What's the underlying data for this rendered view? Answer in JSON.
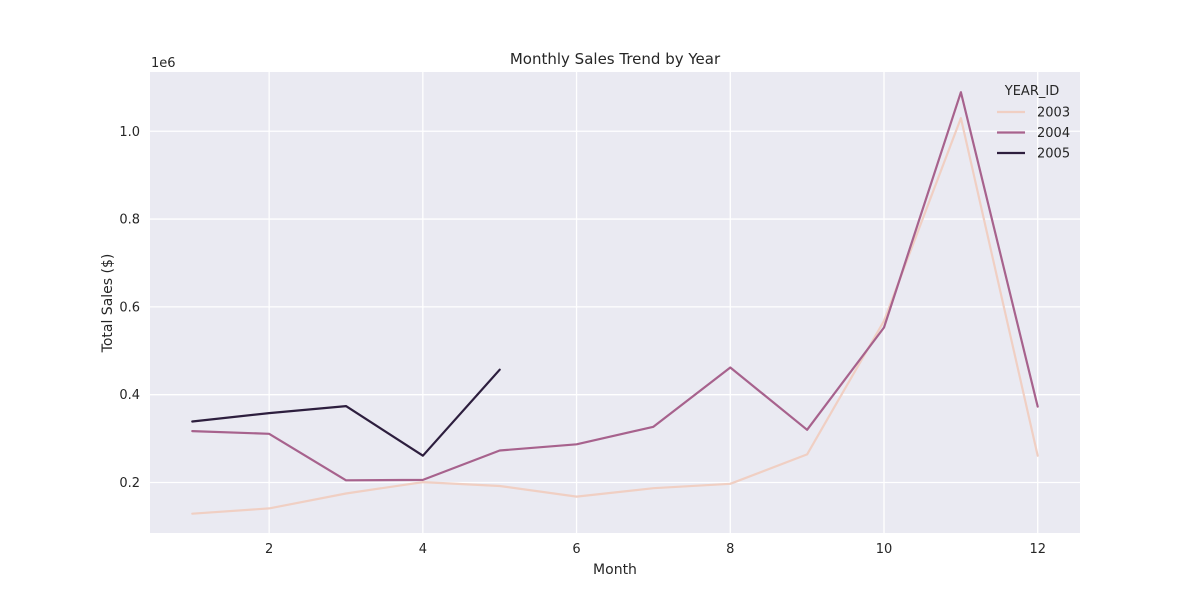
{
  "chart_data": {
    "type": "line",
    "title": "Monthly Sales Trend by Year",
    "xlabel": "Month",
    "ylabel": "Total Sales ($)",
    "y_offset_label": "1e6",
    "xlim": [
      0.45,
      12.55
    ],
    "ylim": [
      0.085,
      1.135
    ],
    "x_ticks": [
      2,
      4,
      6,
      8,
      10,
      12
    ],
    "x_tick_labels": [
      "2",
      "4",
      "6",
      "8",
      "10",
      "12"
    ],
    "y_ticks": [
      0.2,
      0.4,
      0.6,
      0.8,
      1.0
    ],
    "y_tick_labels": [
      "0.2",
      "0.4",
      "0.6",
      "0.8",
      "1.0"
    ],
    "grid": true,
    "background": "#eaeaf2",
    "legend": {
      "title": "YEAR_ID",
      "placement": "top-right"
    },
    "series": [
      {
        "name": "2003",
        "color": "#f0cfc3",
        "x": [
          1,
          2,
          3,
          4,
          5,
          6,
          7,
          8,
          9,
          10,
          11,
          12
        ],
        "y": [
          0.129,
          0.141,
          0.175,
          0.201,
          0.192,
          0.168,
          0.187,
          0.197,
          0.264,
          0.568,
          1.03,
          0.261
        ]
      },
      {
        "name": "2004",
        "color": "#a7628d",
        "x": [
          1,
          2,
          3,
          4,
          5,
          6,
          7,
          8,
          9,
          10,
          11,
          12
        ],
        "y": [
          0.317,
          0.311,
          0.205,
          0.206,
          0.273,
          0.287,
          0.327,
          0.462,
          0.32,
          0.553,
          1.089,
          0.373
        ]
      },
      {
        "name": "2005",
        "color": "#2d1e3e",
        "x": [
          1,
          2,
          3,
          4,
          5
        ],
        "y": [
          0.339,
          0.358,
          0.374,
          0.261,
          0.457
        ]
      }
    ]
  }
}
